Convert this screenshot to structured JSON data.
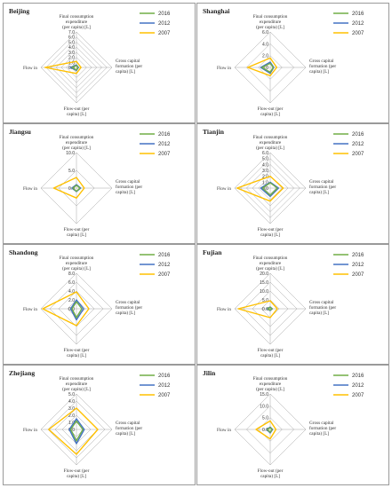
{
  "legend": [
    "2016",
    "2012",
    "2007"
  ],
  "colors": {
    "2016": "#70ad47",
    "2012": "#4472c4",
    "2007": "#ffc000",
    "grid": "#a6a6a6",
    "text": "#333333"
  },
  "chart_data": [
    {
      "type": "radar",
      "title": "Beijing",
      "axes": [
        "Final consumption expenditure (per capita) [L]",
        "Gross capital formation (per capita) [L]",
        "Flow-out (per capita) [L]",
        "Flow in"
      ],
      "ticks": [
        "0.0",
        "1.0",
        "2.0",
        "3.0",
        "4.0",
        "5.0",
        "6.0",
        "7.0"
      ],
      "rmax": 7,
      "series": [
        {
          "name": "2016",
          "values": [
            0.4,
            0.3,
            0.5,
            0.9
          ]
        },
        {
          "name": "2012",
          "values": [
            0.5,
            0.4,
            0.6,
            1.2
          ]
        },
        {
          "name": "2007",
          "values": [
            1.2,
            0.9,
            1.2,
            6.2
          ]
        }
      ]
    },
    {
      "type": "radar",
      "title": "Shanghai",
      "axes": [
        "Final consumption expenditure (per capita) [L]",
        "Gross capital formation (per capita) [L]",
        "Flow-out (per capita) [L]",
        "Flow in"
      ],
      "ticks": [
        "0.0",
        "2.0",
        "4.0",
        "6.0"
      ],
      "rmax": 6,
      "series": [
        {
          "name": "2016",
          "values": [
            0.7,
            0.5,
            0.8,
            1.4
          ]
        },
        {
          "name": "2012",
          "values": [
            0.9,
            0.6,
            1.0,
            1.6
          ]
        },
        {
          "name": "2007",
          "values": [
            1.6,
            1.1,
            1.4,
            3.8
          ]
        }
      ]
    },
    {
      "type": "radar",
      "title": "Jiangsu",
      "axes": [
        "Final consumption expenditure (per capita) [L]",
        "Gross capital formation (per capita) [L]",
        "Flow-out (per capita) [L]",
        "Flow in"
      ],
      "ticks": [
        "0.0",
        "5.0",
        "10.0"
      ],
      "rmax": 10,
      "series": [
        {
          "name": "2016",
          "values": [
            0.8,
            1.0,
            0.9,
            1.0
          ]
        },
        {
          "name": "2012",
          "values": [
            1.0,
            1.2,
            1.0,
            1.3
          ]
        },
        {
          "name": "2007",
          "values": [
            3.0,
            2.2,
            2.8,
            6.4
          ]
        }
      ]
    },
    {
      "type": "radar",
      "title": "Tianjin",
      "axes": [
        "Final consumption expenditure (per capita) [L]",
        "Gross capital formation (per capita) [L]",
        "Flow-out (per capita) [L]",
        "Flow in"
      ],
      "ticks": [
        "0.0",
        "1.0",
        "2.0",
        "3.0",
        "4.0",
        "5.0",
        "6.0"
      ],
      "rmax": 6,
      "series": [
        {
          "name": "2016",
          "values": [
            0.9,
            1.2,
            1.2,
            1.3
          ]
        },
        {
          "name": "2012",
          "values": [
            1.0,
            1.4,
            1.4,
            1.6
          ]
        },
        {
          "name": "2007",
          "values": [
            2.0,
            2.2,
            2.2,
            5.6
          ]
        }
      ]
    },
    {
      "type": "radar",
      "title": "Shandong",
      "axes": [
        "Final consumption expenditure (per capita) [L]",
        "Gross capital formation (per capita) [L]",
        "Flow-out (per capita) [L]",
        "Flow in"
      ],
      "ticks": [
        "0.0",
        "2.0",
        "4.0",
        "6.0",
        "8.0"
      ],
      "rmax": 8,
      "series": [
        {
          "name": "2016",
          "values": [
            1.6,
            1.2,
            2.0,
            1.0
          ]
        },
        {
          "name": "2012",
          "values": [
            2.0,
            1.6,
            2.5,
            1.3
          ]
        },
        {
          "name": "2007",
          "values": [
            3.8,
            2.8,
            3.8,
            7.6
          ]
        }
      ]
    },
    {
      "type": "radar",
      "title": "Fujian",
      "axes": [
        "Final consumption expenditure (per capita) [L]",
        "Gross capital formation (per capita) [L]",
        "Flow-out (per capita) [L]",
        "Flow in"
      ],
      "ticks": [
        "0.0",
        "5.0",
        "10.0",
        "15.0",
        "20.0"
      ],
      "rmax": 20,
      "series": [
        {
          "name": "2016",
          "values": [
            0.8,
            1.0,
            0.8,
            1.4
          ]
        },
        {
          "name": "2012",
          "values": [
            1.0,
            1.2,
            1.0,
            1.8
          ]
        },
        {
          "name": "2007",
          "values": [
            4.5,
            4.0,
            5.0,
            18.0
          ]
        }
      ]
    },
    {
      "type": "radar",
      "title": "Zhejiang",
      "axes": [
        "Final consumption expenditure (per capita) [L]",
        "Gross capital formation (per capita) [L]",
        "Flow-out (per capita) [L]",
        "Flow in"
      ],
      "ticks": [
        "0.0",
        "1.0",
        "2.0",
        "3.0",
        "4.0",
        "5.0"
      ],
      "rmax": 5,
      "series": [
        {
          "name": "2016",
          "values": [
            1.2,
            0.9,
            1.6,
            0.8
          ]
        },
        {
          "name": "2012",
          "values": [
            1.5,
            1.1,
            2.0,
            1.0
          ]
        },
        {
          "name": "2007",
          "values": [
            3.0,
            3.0,
            3.5,
            3.9
          ]
        }
      ]
    },
    {
      "type": "radar",
      "title": "Jilin",
      "axes": [
        "Final consumption expenditure (per capita) [L]",
        "Gross capital formation (per capita) [L]",
        "Flow-out (per capita) [L]",
        "Flow in"
      ],
      "ticks": [
        "0.0",
        "5.0",
        "10.0",
        "15.0"
      ],
      "rmax": 15,
      "series": [
        {
          "name": "2016",
          "values": [
            0.8,
            0.8,
            1.2,
            1.2
          ]
        },
        {
          "name": "2012",
          "values": [
            1.0,
            1.0,
            1.5,
            1.5
          ]
        },
        {
          "name": "2007",
          "values": [
            3.6,
            2.4,
            4.0,
            6.0
          ]
        }
      ]
    }
  ]
}
